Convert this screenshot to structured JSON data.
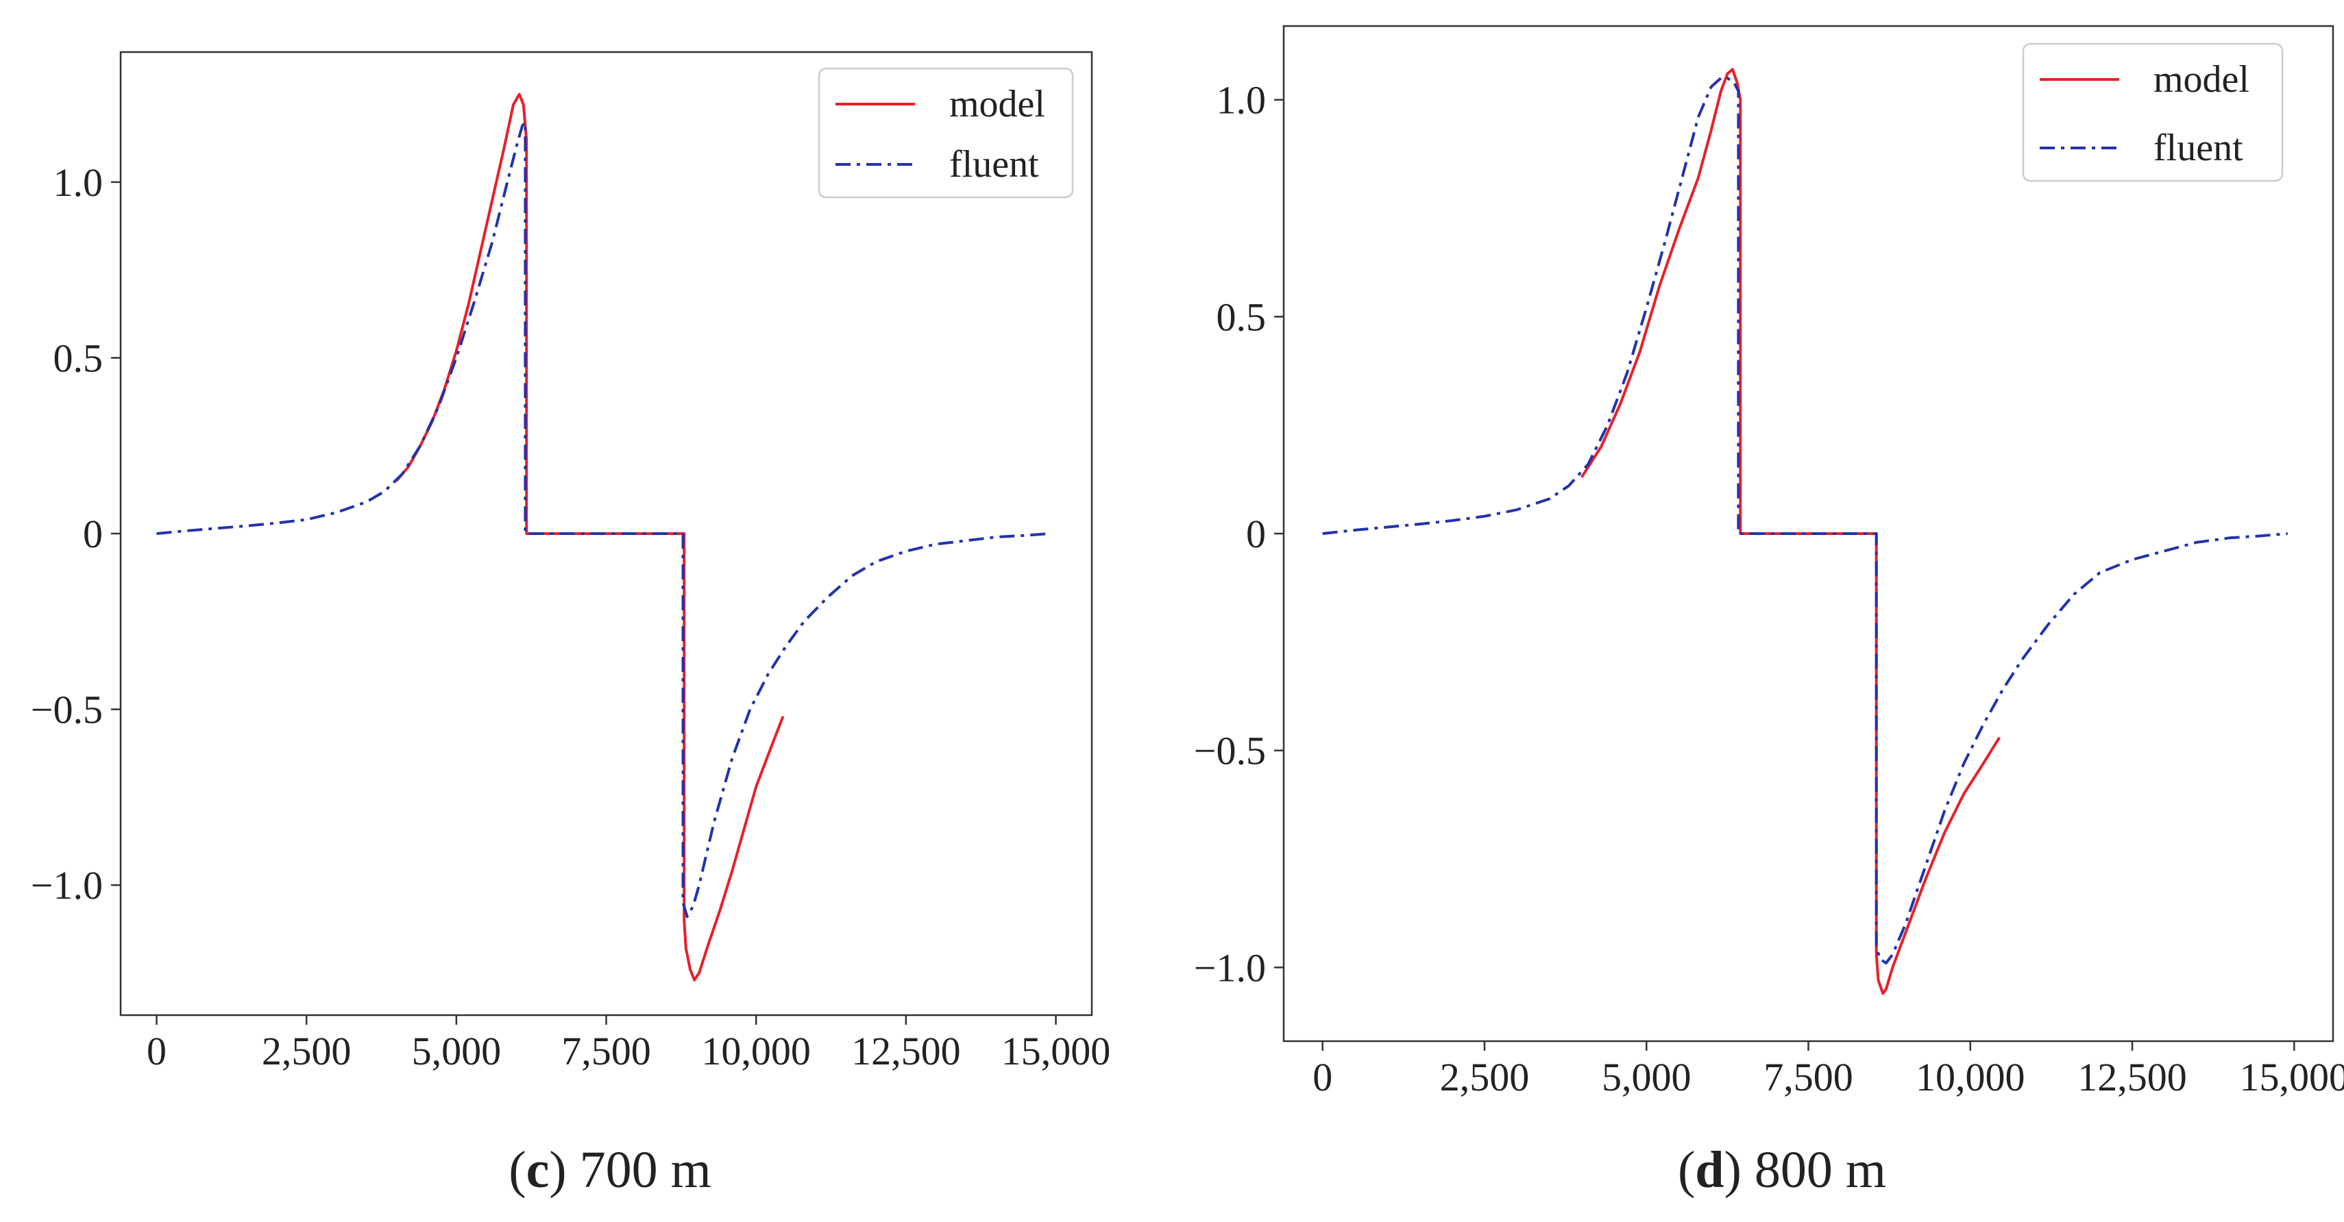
{
  "figure": {
    "captions": [
      {
        "paren_open": "(",
        "letter": "c",
        "paren_close": ")",
        "text": " 700 m"
      },
      {
        "paren_open": "(",
        "letter": "d",
        "paren_close": ")",
        "text": " 800 m"
      }
    ]
  },
  "chart_data": [
    {
      "type": "line",
      "title": "",
      "xlabel": "",
      "ylabel": "",
      "xlim": [
        -600,
        15600
      ],
      "ylim": [
        -1.37,
        1.37
      ],
      "x_ticks": [
        0,
        2500,
        5000,
        7500,
        10000,
        12500,
        15000
      ],
      "x_tick_labels": [
        "0",
        "2,500",
        "5,000",
        "7,500",
        "10,000",
        "12,500",
        "15,000"
      ],
      "y_ticks": [
        -1.0,
        -0.5,
        0,
        0.5,
        1.0
      ],
      "y_tick_labels": [
        "−1.0",
        "−0.5",
        "0",
        "0.5",
        "1.0"
      ],
      "legend": {
        "position": "top-right",
        "entries": [
          "model",
          "fluent"
        ]
      },
      "grid": false,
      "series": [
        {
          "name": "model",
          "color": "#e8202a",
          "dash": "solid",
          "x": [
            4000,
            4200,
            4400,
            4600,
            4800,
            5000,
            5200,
            5400,
            5600,
            5800,
            5950,
            6050,
            6120,
            6170,
            6170,
            8800,
            8800,
            8830,
            8900,
            8970,
            9050,
            9200,
            9400,
            9600,
            9800,
            10000,
            10200,
            10450
          ],
          "y": [
            0.15,
            0.19,
            0.25,
            0.32,
            0.41,
            0.52,
            0.65,
            0.8,
            0.95,
            1.1,
            1.22,
            1.25,
            1.22,
            1.12,
            0,
            0,
            -1.1,
            -1.18,
            -1.24,
            -1.27,
            -1.25,
            -1.17,
            -1.07,
            -0.96,
            -0.84,
            -0.72,
            -0.63,
            -0.52
          ]
        },
        {
          "name": "fluent",
          "color": "#2233aa",
          "dash": "dashdot",
          "x": [
            0,
            500,
            1000,
            1500,
            2000,
            2500,
            3000,
            3500,
            3800,
            4100,
            4400,
            4700,
            5000,
            5300,
            5600,
            5850,
            6000,
            6100,
            6150,
            6150,
            8780,
            8780,
            8850,
            8950,
            9050,
            9300,
            9600,
            9900,
            10200,
            10500,
            10800,
            11200,
            11600,
            12000,
            12500,
            13000,
            13500,
            14000,
            14500,
            14900
          ],
          "y": [
            0.0,
            0.008,
            0.015,
            0.022,
            0.03,
            0.04,
            0.06,
            0.09,
            0.12,
            0.17,
            0.25,
            0.36,
            0.5,
            0.66,
            0.83,
            1.0,
            1.1,
            1.16,
            1.17,
            0,
            0,
            -1.05,
            -1.09,
            -1.06,
            -1.0,
            -0.82,
            -0.64,
            -0.5,
            -0.4,
            -0.32,
            -0.25,
            -0.18,
            -0.12,
            -0.08,
            -0.05,
            -0.03,
            -0.02,
            -0.01,
            -0.005,
            0.0
          ]
        }
      ]
    },
    {
      "type": "line",
      "title": "",
      "xlabel": "",
      "ylabel": "",
      "xlim": [
        -600,
        15600
      ],
      "ylim": [
        -1.17,
        1.17
      ],
      "x_ticks": [
        0,
        2500,
        5000,
        7500,
        10000,
        12500,
        15000
      ],
      "x_tick_labels": [
        "0",
        "2,500",
        "5,000",
        "7,500",
        "10,000",
        "12,500",
        "15,000"
      ],
      "y_ticks": [
        -1.0,
        -0.5,
        0,
        0.5,
        1.0
      ],
      "y_tick_labels": [
        "−1.0",
        "−0.5",
        "0",
        "0.5",
        "1.0"
      ],
      "legend": {
        "position": "top-right",
        "entries": [
          "model",
          "fluent"
        ]
      },
      "grid": false,
      "series": [
        {
          "name": "model",
          "color": "#e8202a",
          "dash": "solid",
          "x": [
            4000,
            4300,
            4600,
            4900,
            5200,
            5500,
            5800,
            6000,
            6150,
            6250,
            6330,
            6400,
            6450,
            6450,
            8550,
            8550,
            8580,
            8650,
            8700,
            8800,
            9000,
            9300,
            9600,
            9900,
            10200,
            10450
          ],
          "y": [
            0.13,
            0.2,
            0.3,
            0.42,
            0.57,
            0.7,
            0.82,
            0.93,
            1.02,
            1.06,
            1.07,
            1.04,
            1.0,
            0,
            0,
            -0.97,
            -1.03,
            -1.06,
            -1.05,
            -1.0,
            -0.92,
            -0.8,
            -0.69,
            -0.6,
            -0.53,
            -0.47
          ]
        },
        {
          "name": "fluent",
          "color": "#2233aa",
          "dash": "dashdot",
          "x": [
            0,
            500,
            1000,
            1500,
            2000,
            2500,
            3000,
            3500,
            3800,
            4100,
            4400,
            4700,
            5000,
            5300,
            5550,
            5800,
            6000,
            6150,
            6250,
            6350,
            6420,
            6420,
            8550,
            8550,
            8600,
            8700,
            8800,
            9000,
            9300,
            9600,
            9900,
            10200,
            10500,
            10800,
            11200,
            11600,
            12000,
            12500,
            13000,
            13500,
            14000,
            14500,
            14900
          ],
          "y": [
            0.0,
            0.008,
            0.015,
            0.022,
            0.03,
            0.04,
            0.055,
            0.08,
            0.11,
            0.16,
            0.25,
            0.37,
            0.52,
            0.68,
            0.82,
            0.96,
            1.03,
            1.05,
            1.05,
            1.04,
            1.02,
            0,
            0,
            -0.95,
            -0.98,
            -0.99,
            -0.97,
            -0.9,
            -0.77,
            -0.64,
            -0.53,
            -0.44,
            -0.36,
            -0.29,
            -0.21,
            -0.14,
            -0.09,
            -0.06,
            -0.04,
            -0.02,
            -0.01,
            -0.005,
            0.0
          ]
        }
      ]
    }
  ]
}
